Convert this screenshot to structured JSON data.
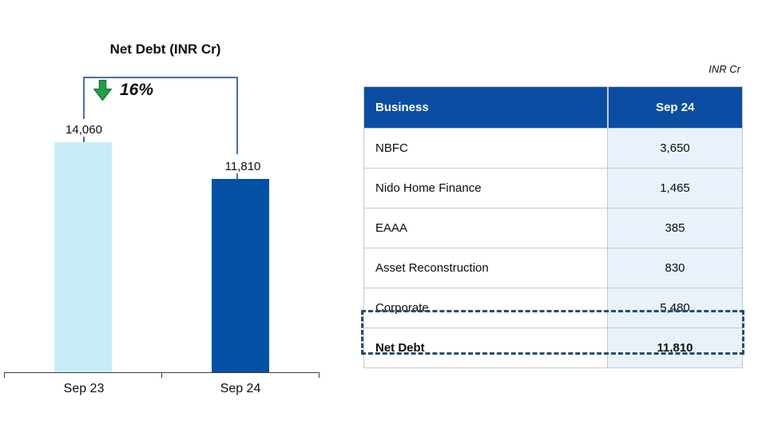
{
  "chart": {
    "title": "Net Debt (INR Cr)",
    "annotation": "16%",
    "annotation_icon": "green-down-arrow"
  },
  "chart_data": {
    "type": "bar",
    "title": "Net Debt (INR Cr)",
    "categories": [
      "Sep 23",
      "Sep 24"
    ],
    "values": [
      14060,
      11810
    ],
    "value_labels": [
      "14,060",
      "11,810"
    ],
    "series_colors": [
      "#c9edf8",
      "#0450a4"
    ],
    "annotation": "16%",
    "ylim": [
      0,
      14060
    ],
    "grid": false,
    "legend": false
  },
  "table": {
    "unit_label": "INR Cr",
    "columns": [
      "Business",
      "Sep 24"
    ],
    "rows": [
      {
        "label": "NBFC",
        "value": "3,650"
      },
      {
        "label": "Nido Home Finance",
        "value": "1,465"
      },
      {
        "label": "EAAA",
        "value": "385"
      },
      {
        "label": "Asset Reconstruction",
        "value": "830"
      },
      {
        "label": "Corporate",
        "value": "5,480"
      }
    ],
    "total_row": {
      "label": "Net Debt",
      "value": "11,810"
    }
  },
  "colors": {
    "bar_sep23": "#c9edf8",
    "bar_sep24": "#0450a4",
    "table_header_bg": "#0b4da2",
    "value_cell_bg": "#e9f2fb",
    "bracket_line": "#4a6bbd",
    "dashed_border": "#1f4e79",
    "arrow_green": "#21a046"
  }
}
